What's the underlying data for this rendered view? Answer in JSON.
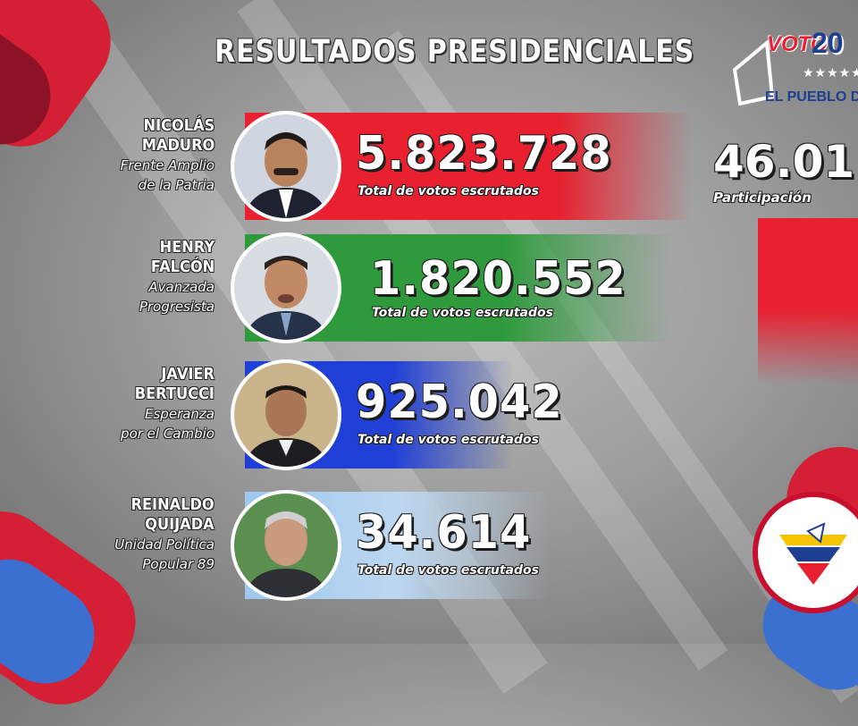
{
  "header": {
    "title": "RESULTADOS PRESIDENCIALES"
  },
  "logo": {
    "voto": "VOTO",
    "year": "20",
    "slogan": "EL PUEBLO DE"
  },
  "participation": {
    "value": "46.01",
    "label": "Participación",
    "bar_color": "#e8202f"
  },
  "candidates": [
    {
      "name_line1": "NICOLÁS",
      "name_line2": "MADURO",
      "party_line1": "Frente Amplio",
      "party_line2": "de la Patria",
      "votes": "5.823.728",
      "caption": "Total de votos escrutados",
      "bar_color": "#e8202f"
    },
    {
      "name_line1": "HENRY",
      "name_line2": "FALCÓN",
      "party_line1": "Avanzada",
      "party_line2": "Progresista",
      "votes": "1.820.552",
      "caption": "Total de votos escrutados",
      "bar_color": "#2e9a3c"
    },
    {
      "name_line1": "JAVIER",
      "name_line2": "BERTUCCI",
      "party_line1": "Esperanza",
      "party_line2": "por el Cambio",
      "votes": "925.042",
      "caption": "Total de votos escrutados",
      "bar_color": "#1f3fd6"
    },
    {
      "name_line1": "REINALDO",
      "name_line2": "QUIJADA",
      "party_line1": "Unidad Política",
      "party_line2": "Popular 89",
      "votes": "34.614",
      "caption": "Total de votos escrutados",
      "bar_color": "#9ec8ee"
    }
  ],
  "colors": {
    "red": "#e8202f",
    "blue": "#1c3f8f",
    "yellow": "#f5c400"
  }
}
